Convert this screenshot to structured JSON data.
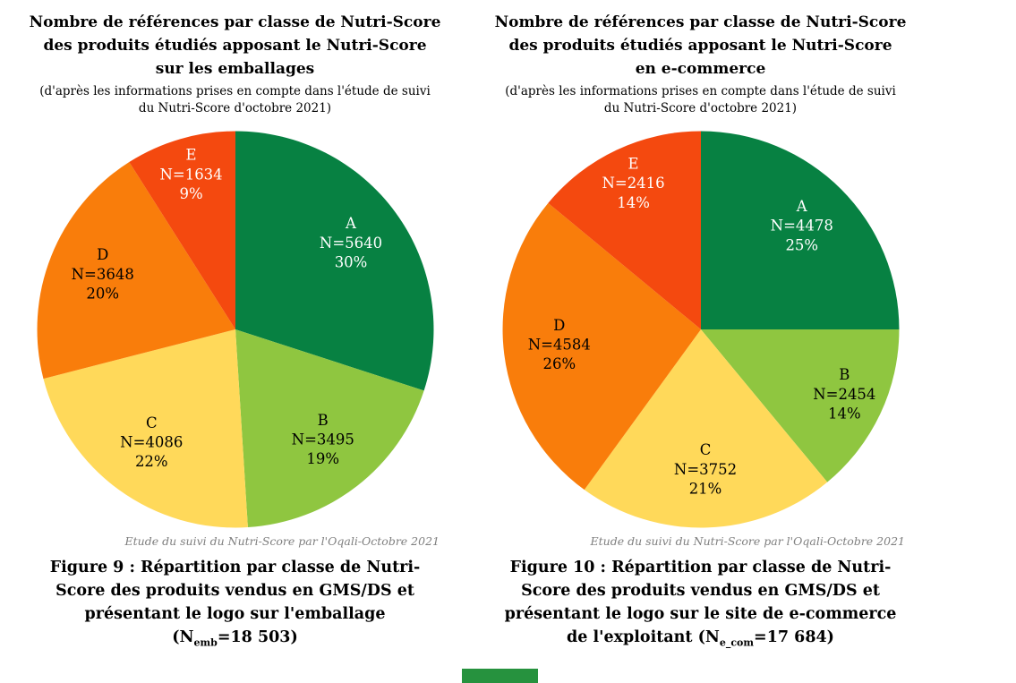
{
  "page": {
    "background": "#FFFFFF"
  },
  "green_bar_color": "#26923E",
  "chart_data": [
    {
      "type": "pie",
      "title_lines": [
        "Nombre de références par classe de Nutri-Score",
        "des produits étudiés apposant le Nutri-Score",
        "sur les emballages"
      ],
      "subtitle_lines": [
        "(d'après les informations prises en compte dans l'étude de suivi",
        "du Nutri-Score d'octobre 2021)"
      ],
      "slices": [
        {
          "label": "A",
          "n": "N=5640",
          "pct": 30,
          "value": 5640,
          "color": "#078142",
          "text_color": "#FFFFFF"
        },
        {
          "label": "B",
          "n": "N=3495",
          "pct": 19,
          "value": 3495,
          "color": "#8FC640",
          "text_color": "#000000"
        },
        {
          "label": "C",
          "n": "N=4086",
          "pct": 22,
          "value": 4086,
          "color": "#FFD95A",
          "text_color": "#000000"
        },
        {
          "label": "D",
          "n": "N=3648",
          "pct": 20,
          "value": 3648,
          "color": "#F97D0B",
          "text_color": "#000000"
        },
        {
          "label": "E",
          "n": "N=1634",
          "pct": 9,
          "value": 1634,
          "color": "#F4490F",
          "text_color": "#FFFFFF"
        }
      ],
      "layout": {
        "start_angle_deg": 0,
        "clockwise": true,
        "legend": "none"
      },
      "source": "Etude du suivi du Nutri-Score par l'Oqali-Octobre 2021",
      "caption_lines": [
        "Figure 9 : Répartition par classe de Nutri-",
        "Score des produits vendus en GMS/DS et",
        "présentant le logo sur l'emballage"
      ],
      "caption_n": {
        "pre": "(N",
        "sub": "emb",
        "post": "=18 503)"
      }
    },
    {
      "type": "pie",
      "title_lines": [
        "Nombre de références par classe de Nutri-Score",
        "des produits étudiés apposant le Nutri-Score",
        "en e-commerce"
      ],
      "subtitle_lines": [
        "(d'après les informations prises en compte dans l'étude de suivi",
        "du Nutri-Score d'octobre 2021)"
      ],
      "slices": [
        {
          "label": "A",
          "n": "N=4478",
          "pct": 25,
          "value": 4478,
          "color": "#078142",
          "text_color": "#FFFFFF"
        },
        {
          "label": "B",
          "n": "N=2454",
          "pct": 14,
          "value": 2454,
          "color": "#8FC640",
          "text_color": "#000000"
        },
        {
          "label": "C",
          "n": "N=3752",
          "pct": 21,
          "value": 3752,
          "color": "#FFD95A",
          "text_color": "#000000"
        },
        {
          "label": "D",
          "n": "N=4584",
          "pct": 26,
          "value": 4584,
          "color": "#F97D0B",
          "text_color": "#000000"
        },
        {
          "label": "E",
          "n": "N=2416",
          "pct": 14,
          "value": 2416,
          "color": "#F4490F",
          "text_color": "#FFFFFF"
        }
      ],
      "layout": {
        "start_angle_deg": 0,
        "clockwise": true,
        "legend": "none"
      },
      "source": "Etude du suivi du Nutri-Score par l'Oqali-Octobre 2021",
      "caption_lines": [
        "Figure 10 : Répartition par classe de Nutri-",
        "Score des produits vendus en GMS/DS et",
        "présentant le logo sur le site de e-commerce"
      ],
      "caption_n": {
        "pre": "de l'exploitant (N",
        "sub": "e_com",
        "post": "=17 684)"
      }
    }
  ]
}
